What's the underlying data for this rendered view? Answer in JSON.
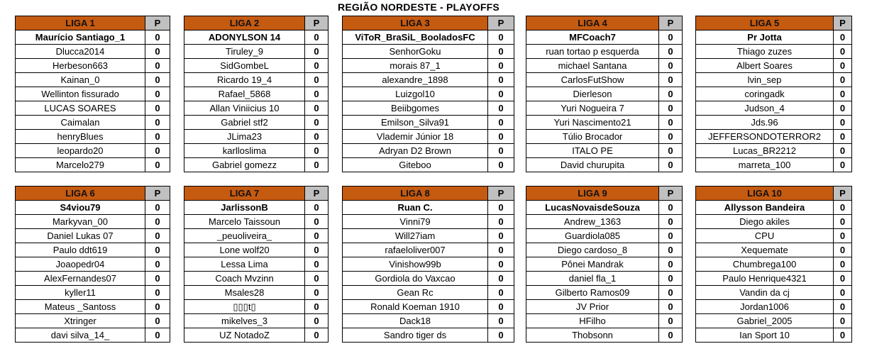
{
  "title": "REGIÃO NORDESTE - PLAYOFFS",
  "points_header": "P",
  "colors": {
    "header": "#c55a11",
    "points_header": "#c0c0c0"
  },
  "leagues": [
    {
      "name": "LIGA 1",
      "players": [
        {
          "name": "Maurício Santiago_1",
          "p": "0"
        },
        {
          "name": "Dlucca2014",
          "p": "0"
        },
        {
          "name": "Herbeson663",
          "p": "0"
        },
        {
          "name": "Kainan_0",
          "p": "0"
        },
        {
          "name": "Wellinton fissurado",
          "p": "0"
        },
        {
          "name": "LUCAS SOARES",
          "p": "0"
        },
        {
          "name": "Caimalan",
          "p": "0"
        },
        {
          "name": "henryBlues",
          "p": "0"
        },
        {
          "name": "leopardo20",
          "p": "0"
        },
        {
          "name": "Marcelo279",
          "p": "0"
        }
      ]
    },
    {
      "name": "LIGA 2",
      "players": [
        {
          "name": "ADONYLSON 14",
          "p": "0"
        },
        {
          "name": "Tiruley_9",
          "p": "0"
        },
        {
          "name": "SidGombeL",
          "p": "0"
        },
        {
          "name": "Ricardo 19_4",
          "p": "0"
        },
        {
          "name": "Rafael_5868",
          "p": "0"
        },
        {
          "name": "Allan Viniicius 10",
          "p": "0"
        },
        {
          "name": "Gabriel stf2",
          "p": "0"
        },
        {
          "name": "JLima23",
          "p": "0"
        },
        {
          "name": "karlloslima",
          "p": "0"
        },
        {
          "name": "Gabriel gomezz",
          "p": "0"
        }
      ]
    },
    {
      "name": "LIGA 3",
      "players": [
        {
          "name": "ViToR_BraSiL_BooladosFC",
          "p": "0"
        },
        {
          "name": "SenhorGoku",
          "p": "0"
        },
        {
          "name": "morais 87_1",
          "p": "0"
        },
        {
          "name": "alexandre_1898",
          "p": "0"
        },
        {
          "name": "Luizgol10",
          "p": "0"
        },
        {
          "name": "Beiibgomes",
          "p": "0"
        },
        {
          "name": "Emilson_Silva91",
          "p": "0"
        },
        {
          "name": "Vlademir Júnior 18",
          "p": "0"
        },
        {
          "name": "Adryan D2 Brown",
          "p": "0"
        },
        {
          "name": "Giteboo",
          "p": "0"
        }
      ]
    },
    {
      "name": "LIGA 4",
      "players": [
        {
          "name": "MFCoach7",
          "p": "0"
        },
        {
          "name": "ruan tortao p esquerda",
          "p": "0"
        },
        {
          "name": "michael Santana",
          "p": "0"
        },
        {
          "name": "CarlosFutShow",
          "p": "0"
        },
        {
          "name": "Dierleson",
          "p": "0"
        },
        {
          "name": "Yuri Nogueira 7",
          "p": "0"
        },
        {
          "name": "Yuri Nascimento21",
          "p": "0"
        },
        {
          "name": "Túlio Brocador",
          "p": "0"
        },
        {
          "name": "ITALO PE",
          "p": "0"
        },
        {
          "name": "David churupita",
          "p": "0"
        }
      ]
    },
    {
      "name": "LIGA 5",
      "players": [
        {
          "name": "Pr Jotta",
          "p": "0"
        },
        {
          "name": "Thiago zuzes",
          "p": "0"
        },
        {
          "name": "Albert Soares",
          "p": "0"
        },
        {
          "name": "lvin_sep",
          "p": "0"
        },
        {
          "name": "coringadk",
          "p": "0"
        },
        {
          "name": "Judson_4",
          "p": "0"
        },
        {
          "name": "Jds.96",
          "p": "0"
        },
        {
          "name": "JEFFERSONDOTERROR2",
          "p": "0"
        },
        {
          "name": "Lucas_BR2212",
          "p": "0"
        },
        {
          "name": "marreta_100",
          "p": "0"
        }
      ]
    },
    {
      "name": "LIGA 6",
      "players": [
        {
          "name": "S4viou79",
          "p": "0"
        },
        {
          "name": "Markyvan_00",
          "p": "0"
        },
        {
          "name": "Daniel Lukas 07",
          "p": "0"
        },
        {
          "name": "Paulo ddt619",
          "p": "0"
        },
        {
          "name": "Joaopedr04",
          "p": "0"
        },
        {
          "name": "AlexFernandes07",
          "p": "0"
        },
        {
          "name": "kyller11",
          "p": "0"
        },
        {
          "name": "Mateus _Santoss",
          "p": "0"
        },
        {
          "name": "Xtringer",
          "p": "0"
        },
        {
          "name": "davi silva_14_",
          "p": "0"
        }
      ]
    },
    {
      "name": "LIGA 7",
      "players": [
        {
          "name": "JarlissonB",
          "p": "0"
        },
        {
          "name": "Marcelo Taissoun",
          "p": "0"
        },
        {
          "name": "_peuoliveira_",
          "p": "0"
        },
        {
          "name": "Lone wolf20",
          "p": "0"
        },
        {
          "name": "Lessa Lima",
          "p": "0"
        },
        {
          "name": "Coach Mvzinn",
          "p": "0"
        },
        {
          "name": "Msales28",
          "p": "0"
        },
        {
          "name": "▯▯▯t▯",
          "p": "0"
        },
        {
          "name": "mikelves_3",
          "p": "0"
        },
        {
          "name": "UZ NotadoZ",
          "p": "0"
        }
      ]
    },
    {
      "name": "LIGA 8",
      "players": [
        {
          "name": "Ruan C.",
          "p": "0"
        },
        {
          "name": "Vinni79",
          "p": "0"
        },
        {
          "name": "Will27iam",
          "p": "0"
        },
        {
          "name": "rafaeloliver007",
          "p": "0"
        },
        {
          "name": "Vinishow99b",
          "p": "0"
        },
        {
          "name": "Gordiola do Vaxcao",
          "p": "0"
        },
        {
          "name": "Gean Rc",
          "p": "0"
        },
        {
          "name": "Ronald Koeman 1910",
          "p": "0"
        },
        {
          "name": "Dack18",
          "p": "0"
        },
        {
          "name": "Sandro tiger ds",
          "p": "0"
        }
      ]
    },
    {
      "name": "LIGA 9",
      "players": [
        {
          "name": "LucasNovaisdeSouza",
          "p": "0"
        },
        {
          "name": "Andrew_1363",
          "p": "0"
        },
        {
          "name": "Guardiola085",
          "p": "0"
        },
        {
          "name": "Diego cardoso_8",
          "p": "0"
        },
        {
          "name": "Pônei Mandrak",
          "p": "0"
        },
        {
          "name": "daniel fla_1",
          "p": "0"
        },
        {
          "name": "Gilberto Ramos09",
          "p": "0"
        },
        {
          "name": "JV Prior",
          "p": "0"
        },
        {
          "name": "HFilho",
          "p": "0"
        },
        {
          "name": "Thobsonn",
          "p": "0"
        }
      ]
    },
    {
      "name": "LIGA 10",
      "players": [
        {
          "name": "Allysson Bandeira",
          "p": "0"
        },
        {
          "name": "Diego akiles",
          "p": "0"
        },
        {
          "name": "CPU",
          "p": "0"
        },
        {
          "name": "Xequemate",
          "p": "0"
        },
        {
          "name": "Chumbrega100",
          "p": "0"
        },
        {
          "name": "Paulo Henrique4321",
          "p": "0"
        },
        {
          "name": "Vandin da cj",
          "p": "0"
        },
        {
          "name": "Jordan1006",
          "p": "0"
        },
        {
          "name": "Gabriel_2005",
          "p": "0"
        },
        {
          "name": "Ian Sport 10",
          "p": "0"
        }
      ]
    }
  ]
}
